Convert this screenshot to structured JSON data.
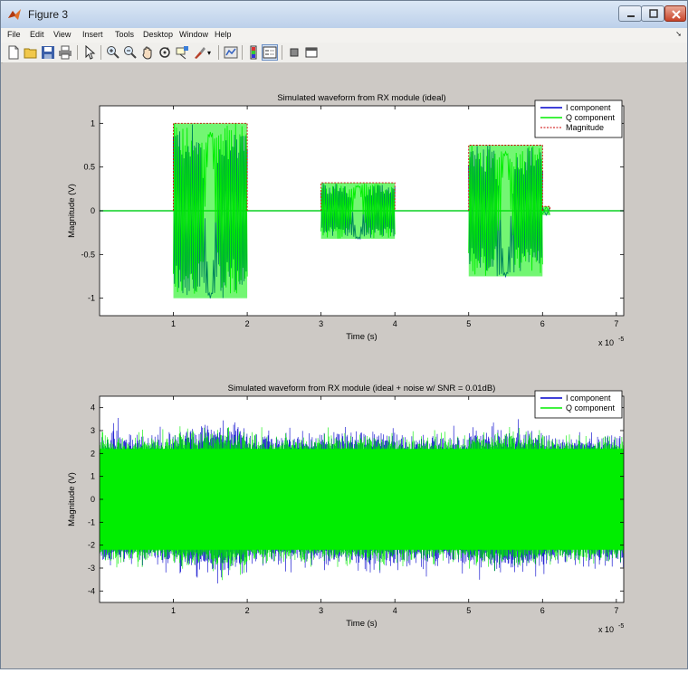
{
  "window": {
    "title": "Figure 3",
    "menus": [
      "File",
      "Edit",
      "View",
      "Insert",
      "Tools",
      "Desktop",
      "Window",
      "Help"
    ],
    "toolbar_icons": [
      "new-figure-icon",
      "open-file-icon",
      "save-icon",
      "print-icon",
      "pointer-icon",
      "zoom-in-icon",
      "zoom-out-icon",
      "pan-icon",
      "rotate-3d-icon",
      "data-cursor-icon",
      "brush-icon",
      "link-plot-icon",
      "colorbar-icon",
      "legend-icon",
      "hide-plot-tools-icon",
      "show-plot-tools-icon"
    ]
  },
  "colors": {
    "figure_bg": "#cdc9c5",
    "i_component": "#0000cc",
    "q_component": "#00ee00",
    "magnitude": "#cc0000"
  },
  "chart_data": [
    {
      "type": "line",
      "title": "Simulated waveform from RX module (ideal)",
      "xlabel": "Time (s)",
      "ylabel": "Magnitude (V)",
      "x_exponent_label": "x 10",
      "x_exponent": "-5",
      "xlim": [
        0,
        7.1
      ],
      "ylim": [
        -1.2,
        1.2
      ],
      "xticks": [
        "1",
        "2",
        "3",
        "4",
        "5",
        "6",
        "7"
      ],
      "yticks": [
        "1",
        "0.5",
        "0",
        "-0.5",
        "-1"
      ],
      "legend_location": "top-right",
      "series": [
        {
          "name": "I component",
          "key": "I"
        },
        {
          "name": "Q component",
          "key": "Q"
        },
        {
          "name": "Magnitude",
          "key": "M"
        }
      ],
      "bursts": [
        {
          "x_start": 1.0,
          "x_end": 2.0,
          "amplitude": 1.0
        },
        {
          "x_start": 3.0,
          "x_end": 4.0,
          "amplitude": 0.32
        },
        {
          "x_start": 5.0,
          "x_end": 6.0,
          "amplitude": 0.75
        }
      ],
      "tail": {
        "x_start": 6.0,
        "x_end": 6.1,
        "amplitude": 0.05
      }
    },
    {
      "type": "line",
      "title": "Simulated waveform from RX module (ideal + noise w/ SNR = 0.01dB)",
      "xlabel": "Time (s)",
      "ylabel": "Magnitude (V)",
      "x_exponent_label": "x 10",
      "x_exponent": "-5",
      "xlim": [
        0,
        7.1
      ],
      "ylim": [
        -4.5,
        4.5
      ],
      "xticks": [
        "1",
        "2",
        "3",
        "4",
        "5",
        "6",
        "7"
      ],
      "yticks": [
        "4",
        "3",
        "2",
        "1",
        "0",
        "-1",
        "-2",
        "-3",
        "-4"
      ],
      "legend_location": "top-right",
      "series": [
        {
          "name": "I component",
          "key": "I"
        },
        {
          "name": "Q component",
          "key": "Q"
        }
      ],
      "noise_envelope": 2.2,
      "noise_peak": 3.7
    }
  ]
}
